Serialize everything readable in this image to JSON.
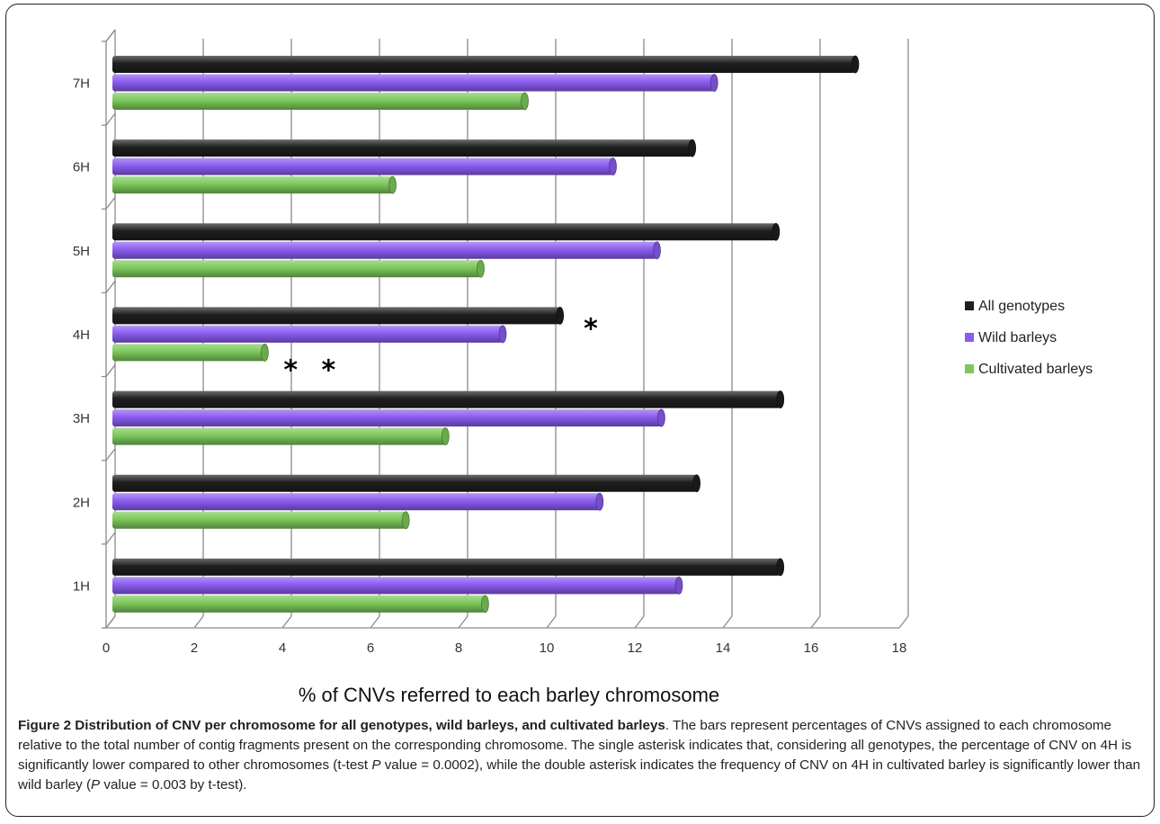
{
  "chart_data": {
    "type": "bar",
    "orientation": "horizontal",
    "categories": [
      "1H",
      "2H",
      "3H",
      "4H",
      "5H",
      "6H",
      "7H"
    ],
    "series": [
      {
        "name": "All genotypes",
        "color": "#1e1e1e",
        "values": [
          15.3,
          13.4,
          15.3,
          10.3,
          15.2,
          13.3,
          17.0
        ]
      },
      {
        "name": "Wild barleys",
        "color": "#8b5cf0",
        "values": [
          13.0,
          11.2,
          12.6,
          9.0,
          12.5,
          11.5,
          13.8
        ]
      },
      {
        "name": "Cultivated barleys",
        "color": "#7cc85a",
        "values": [
          8.6,
          6.8,
          7.7,
          3.6,
          8.5,
          6.5,
          9.5
        ]
      }
    ],
    "xlabel": "% of CNVs referred to each barley chromosome",
    "xlim": [
      0,
      18
    ],
    "xticks": [
      "0",
      "2",
      "4",
      "6",
      "8",
      "10",
      "12",
      "14",
      "16",
      "18"
    ],
    "grid": true,
    "legend_position": "right",
    "annotations": [
      "*",
      "* *"
    ]
  },
  "caption": {
    "title": "Figure 2 Distribution of CNV per chromosome for all genotypes, wild barleys, and cultivated barleys",
    "text_1": ". The bars represent percentages of CNVs assigned to each chromosome relative to the total number of contig fragments present on the corresponding chromosome. The single asterisk indicates that, considering all genotypes, the percentage of CNV on 4H is significantly lower compared to other chromosomes (t-test ",
    "p_1": "P",
    "text_2": " value = 0.0002), while the double asterisk indicates the frequency of CNV on 4H in cultivated barley is significantly lower than wild barley (",
    "p_2": "P",
    "text_3": " value = 0.003 by t-test)."
  }
}
